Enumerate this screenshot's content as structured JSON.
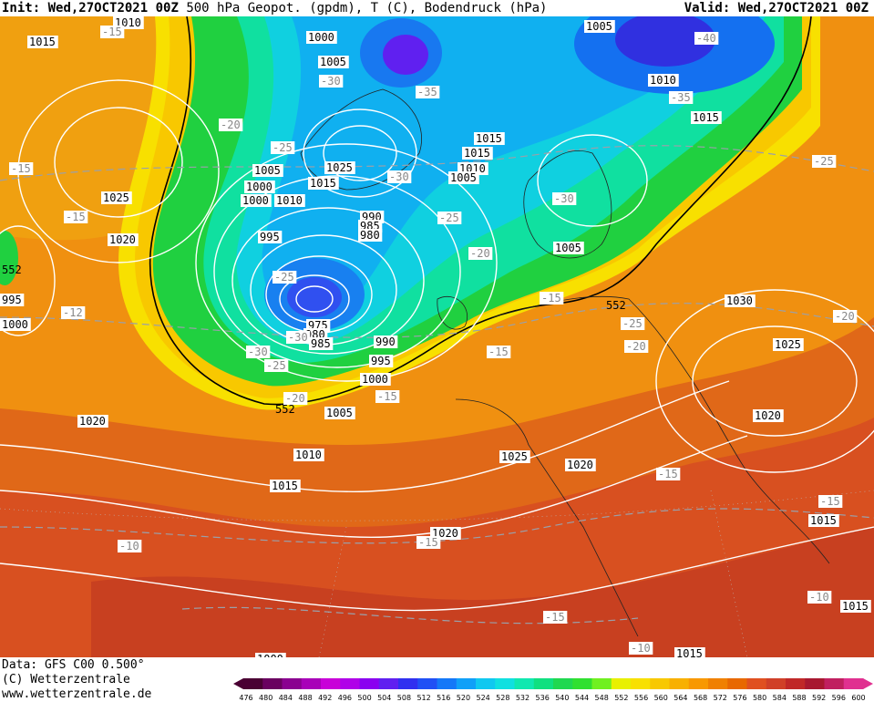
{
  "header": {
    "init_label": "Init:",
    "init_value": "Wed,27OCT2021 00Z",
    "product": "500 hPa Geopot. (gpdm), T (C), Bodendruck (hPa)",
    "valid_label": "Valid:",
    "valid_value": "Wed,27OCT2021 00Z"
  },
  "footer": {
    "data_line": "Data: GFS C00 0.500°",
    "copyright": "(C) Wetterzentrale",
    "url": "www.wetterzentrale.de"
  },
  "colorbar": {
    "ticks": [
      "476",
      "480",
      "484",
      "488",
      "492",
      "496",
      "500",
      "504",
      "508",
      "512",
      "516",
      "520",
      "524",
      "528",
      "532",
      "536",
      "540",
      "544",
      "548",
      "552",
      "556",
      "560",
      "564",
      "568",
      "572",
      "576",
      "580",
      "584",
      "588",
      "592",
      "596",
      "600"
    ],
    "colors": [
      "#4a0033",
      "#6a0060",
      "#8a0090",
      "#a800b8",
      "#c800d8",
      "#b000e8",
      "#8a00f0",
      "#6020f0",
      "#3030f0",
      "#2050f5",
      "#1478f8",
      "#10a0f8",
      "#10c8f0",
      "#10e0e0",
      "#10e8b0",
      "#10e080",
      "#20d850",
      "#30e030",
      "#70f020",
      "#e8f000",
      "#f8e000",
      "#f8c800",
      "#f8b000",
      "#f89800",
      "#f08000",
      "#e86800",
      "#e05020",
      "#d04028",
      "#c02828",
      "#a81830",
      "#c02060",
      "#e03090"
    ]
  },
  "pressure_labels": [
    {
      "text": "1010"
    },
    {
      "text": "1015"
    },
    {
      "text": "1015"
    },
    {
      "text": "1000"
    },
    {
      "text": "1005"
    },
    {
      "text": "1005"
    },
    {
      "text": "1010"
    },
    {
      "text": "1015"
    },
    {
      "text": "1015"
    },
    {
      "text": "1010"
    },
    {
      "text": "1005"
    },
    {
      "text": "1000"
    },
    {
      "text": "1025"
    },
    {
      "text": "1025"
    },
    {
      "text": "1015"
    },
    {
      "text": "1005"
    },
    {
      "text": "1000"
    },
    {
      "text": "1010"
    },
    {
      "text": "990"
    },
    {
      "text": "985"
    },
    {
      "text": "980"
    },
    {
      "text": "995"
    },
    {
      "text": "1020"
    },
    {
      "text": "1005"
    },
    {
      "text": "995"
    },
    {
      "text": "1000"
    },
    {
      "text": "975"
    },
    {
      "text": "980"
    },
    {
      "text": "985"
    },
    {
      "text": "990"
    },
    {
      "text": "995"
    },
    {
      "text": "1000"
    },
    {
      "text": "1005"
    },
    {
      "text": "1030"
    },
    {
      "text": "1025"
    },
    {
      "text": "1020"
    },
    {
      "text": "1020"
    },
    {
      "text": "1010"
    },
    {
      "text": "1015"
    },
    {
      "text": "1025"
    },
    {
      "text": "1020"
    },
    {
      "text": "1020"
    },
    {
      "text": "1015"
    },
    {
      "text": "1015"
    },
    {
      "text": "1015"
    },
    {
      "text": "1000"
    }
  ],
  "temp_labels": [
    {
      "text": "-15"
    },
    {
      "text": "-30"
    },
    {
      "text": "-35"
    },
    {
      "text": "-40"
    },
    {
      "text": "-35"
    },
    {
      "text": "-20"
    },
    {
      "text": "-25"
    },
    {
      "text": "-30"
    },
    {
      "text": "-15"
    },
    {
      "text": "-15"
    },
    {
      "text": "-25"
    },
    {
      "text": "-20"
    },
    {
      "text": "-30"
    },
    {
      "text": "-25"
    },
    {
      "text": "-12"
    },
    {
      "text": "-30"
    },
    {
      "text": "-25"
    },
    {
      "text": "-30"
    },
    {
      "text": "-20"
    },
    {
      "text": "-15"
    },
    {
      "text": "-15"
    },
    {
      "text": "-15"
    },
    {
      "text": "-25"
    },
    {
      "text": "-20"
    },
    {
      "text": "-20"
    },
    {
      "text": "-15"
    },
    {
      "text": "-15"
    },
    {
      "text": "-10"
    },
    {
      "text": "-15"
    },
    {
      "text": "-10"
    },
    {
      "text": "-15"
    },
    {
      "text": "-10"
    },
    {
      "text": "-25"
    }
  ],
  "geopot_labels": [
    {
      "text": "552"
    },
    {
      "text": "552"
    },
    {
      "text": "552"
    }
  ]
}
